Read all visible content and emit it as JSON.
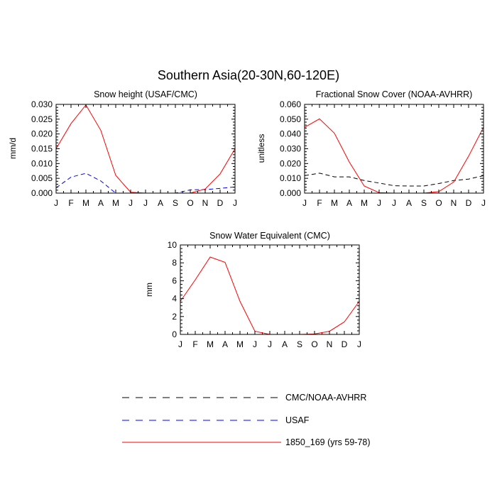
{
  "figure_title": "Southern Asia(20-30N,60-120E)",
  "chart_data": [
    {
      "type": "line",
      "title": "Snow height (USAF/CMC)",
      "xlabel": "",
      "ylabel": "mm/d",
      "x": [
        "J",
        "F",
        "M",
        "A",
        "M",
        "J",
        "J",
        "A",
        "S",
        "O",
        "N",
        "D",
        "J"
      ],
      "ylim": [
        0,
        0.03
      ],
      "yticks": [
        "0.000",
        "0.005",
        "0.010",
        "0.015",
        "0.020",
        "0.025",
        "0.030"
      ],
      "grid": false,
      "series": [
        {
          "name": "CMC/NOAA-AVHRR",
          "color": "#000000",
          "dash": true,
          "values": [
            0,
            0,
            0,
            0,
            0,
            0,
            0,
            0,
            0,
            0,
            0,
            0,
            0
          ]
        },
        {
          "name": "USAF",
          "color": "#0000ff",
          "dash": true,
          "values": [
            0.0018,
            0.0054,
            0.0067,
            0.0041,
            0.0,
            0.0,
            0.0,
            0.0,
            0.0,
            0.0011,
            0.0012,
            0.0016,
            0.0021
          ]
        },
        {
          "name": "1850_169 (yrs 59-78)",
          "color": "#ff0000",
          "dash": false,
          "values": [
            0.015,
            0.0235,
            0.0298,
            0.0212,
            0.006,
            0.0003,
            0.0,
            0.0,
            0.0,
            0.0,
            0.0014,
            0.0065,
            0.015
          ]
        }
      ]
    },
    {
      "type": "line",
      "title": "Fractional Snow Cover (NOAA-AVHRR)",
      "xlabel": "",
      "ylabel": "unitless",
      "x": [
        "J",
        "F",
        "M",
        "A",
        "M",
        "J",
        "J",
        "A",
        "S",
        "O",
        "N",
        "D",
        "J"
      ],
      "ylim": [
        0,
        0.06
      ],
      "yticks": [
        "0.000",
        "0.010",
        "0.020",
        "0.030",
        "0.040",
        "0.050",
        "0.060"
      ],
      "grid": false,
      "series": [
        {
          "name": "CMC/NOAA-AVHRR",
          "color": "#000000",
          "dash": true,
          "values": [
            0.0118,
            0.0135,
            0.011,
            0.011,
            0.0085,
            0.0068,
            0.005,
            0.0048,
            0.0048,
            0.0065,
            0.0085,
            0.0095,
            0.0118
          ]
        },
        {
          "name": "1850_169 (yrs 59-78)",
          "color": "#ff0000",
          "dash": false,
          "values": [
            0.0445,
            0.0502,
            0.0405,
            0.021,
            0.0048,
            0.0003,
            0.0,
            0.0,
            0.0,
            0.001,
            0.0075,
            0.025,
            0.0445
          ]
        }
      ]
    },
    {
      "type": "line",
      "title": "Snow Water Equivalent (CMC)",
      "xlabel": "",
      "ylabel": "mm",
      "x": [
        "J",
        "F",
        "M",
        "A",
        "M",
        "J",
        "J",
        "A",
        "S",
        "O",
        "N",
        "D",
        "J"
      ],
      "ylim": [
        0,
        10
      ],
      "yticks": [
        "0",
        "2",
        "4",
        "6",
        "8",
        "10"
      ],
      "grid": false,
      "series": [
        {
          "name": "CMC/NOAA-AVHRR",
          "color": "#000000",
          "dash": true,
          "values": [
            0,
            0,
            0,
            0,
            0,
            0,
            0,
            0,
            0,
            0,
            0,
            0,
            0
          ]
        },
        {
          "name": "1850_169 (yrs 59-78)",
          "color": "#ff0000",
          "dash": false,
          "values": [
            3.7,
            6.1,
            8.65,
            8.05,
            3.7,
            0.35,
            0.0,
            0.0,
            0.0,
            0.05,
            0.35,
            1.4,
            3.7
          ]
        }
      ]
    }
  ],
  "legend": {
    "placement": "bottom-center",
    "items": [
      {
        "label": "CMC/NOAA-AVHRR",
        "color": "#000000",
        "dash": true
      },
      {
        "label": "USAF",
        "color": "#0000ff",
        "dash": true
      },
      {
        "label": "1850_169 (yrs 59-78)",
        "color": "#ff0000",
        "dash": false
      }
    ]
  }
}
